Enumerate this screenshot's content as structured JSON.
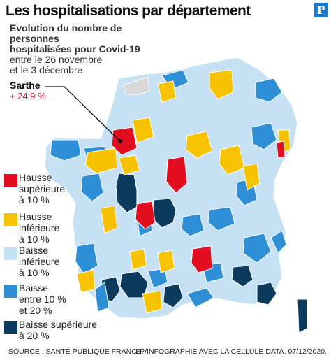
{
  "title": "Les hospitalisations par département",
  "logo_letter": "P",
  "subtitle": {
    "line1": "Evolution du nombre de personnes",
    "line2": "hospitalisées pour Covid-19",
    "line3": "entre le 26 novembre",
    "line4": "et le 3 décembre"
  },
  "annotation": {
    "name": "Sarthe",
    "value": "+ 24,9 %"
  },
  "legend": [
    {
      "line1": "Hausse",
      "line2": "supérieure",
      "line3": "à 10 %",
      "color": "#e30d20"
    },
    {
      "line1": "Hausse",
      "line2": "inférieure",
      "line3": "à 10 %",
      "color": "#f7c300"
    },
    {
      "line1": "Baisse",
      "line2": "inférieure",
      "line3": "à 10 %",
      "color": "#c6e1f4"
    },
    {
      "line1": "Baisse",
      "line2": "entre 10 %",
      "line3": "et 20 %",
      "color": "#2f8fd6"
    },
    {
      "line1": "Baisse supérieure",
      "line2": "à 20 %",
      "line3": "",
      "color": "#0d3b5e"
    }
  ],
  "footer": {
    "source": "SOURCE : SANTÉ PUBLIQUE FRANCE.",
    "credit": "LP/INFOGRAPHIE AVEC LA CELLULE DATA.  07/12/2020."
  },
  "colors": {
    "hausse_sup": "#e30d20",
    "hausse_inf": "#f7c300",
    "baisse_inf": "#c6e1f4",
    "baisse_10_20": "#2f8fd6",
    "baisse_sup": "#0d3b5e",
    "no_data": "#d9d9d9"
  }
}
